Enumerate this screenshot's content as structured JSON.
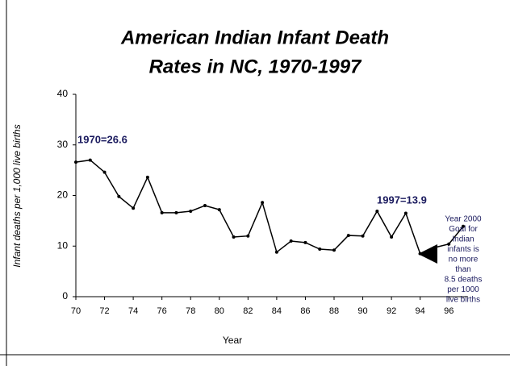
{
  "chart_data": {
    "type": "line",
    "title": [
      "American Indian Infant Death",
      "Rates in NC, 1970-1997"
    ],
    "x_label": "Year",
    "y_label": "Infant deaths per 1,000 live births",
    "x": [
      70,
      71,
      72,
      73,
      74,
      75,
      76,
      77,
      78,
      79,
      80,
      81,
      82,
      83,
      84,
      85,
      86,
      87,
      88,
      89,
      90,
      91,
      92,
      93,
      94,
      95,
      96,
      97
    ],
    "series": [
      {
        "name": "American Indian infant death rate",
        "color": "#000000",
        "values": [
          26.6,
          27.0,
          24.6,
          19.8,
          17.5,
          23.6,
          16.6,
          16.6,
          16.9,
          18.0,
          17.2,
          11.8,
          12.0,
          18.6,
          8.8,
          11.0,
          10.7,
          9.4,
          9.2,
          12.1,
          12.0,
          16.9,
          11.8,
          16.5,
          8.5,
          9.7,
          10.4,
          13.9
        ]
      }
    ],
    "xlim": [
      70,
      97
    ],
    "xticks": [
      70,
      72,
      74,
      76,
      78,
      80,
      82,
      84,
      86,
      88,
      90,
      92,
      94,
      96
    ],
    "ylim": [
      0,
      40
    ],
    "yticks": [
      0,
      10,
      20,
      30,
      40
    ],
    "annotations": [
      "1970=26.6",
      "1997=13.9"
    ],
    "goal_note": [
      "Year 2000",
      "Goal for",
      "Indian",
      "infants is",
      "no more",
      "than",
      "8.5 deaths",
      "per 1000",
      "live births"
    ]
  }
}
